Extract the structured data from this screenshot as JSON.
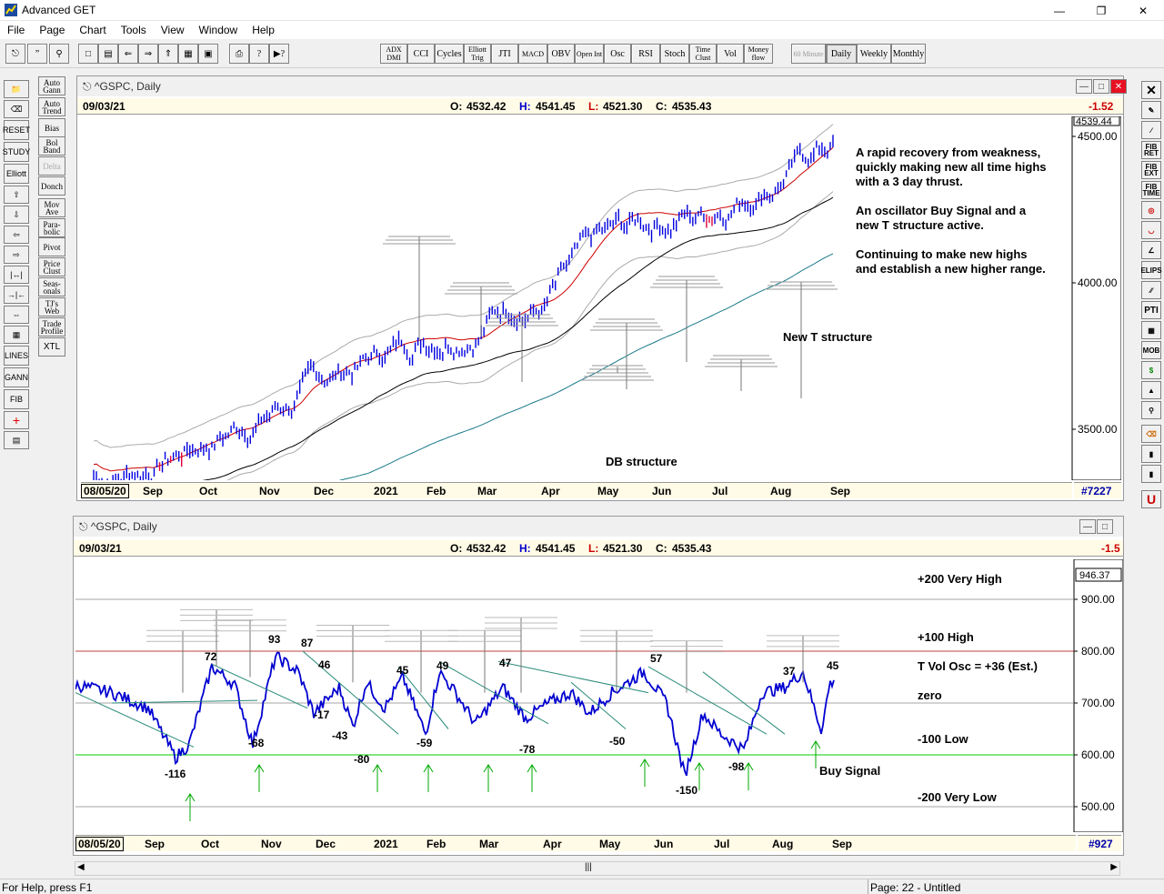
{
  "app": {
    "title": "Advanced GET"
  },
  "menu": [
    "File",
    "Page",
    "Chart",
    "Tools",
    "View",
    "Window",
    "Help"
  ],
  "toolbar": {
    "studies": [
      "ADX DMI",
      "CCI",
      "Cycles",
      "Elliott Trig",
      "JTI",
      "MACD",
      "OBV",
      "Open Int",
      "Osc",
      "RSI",
      "Stoch",
      "Time Clust",
      "Vol",
      "Money flow"
    ],
    "periods": [
      "60 Minute",
      "Daily",
      "Weekly",
      "Monthly"
    ],
    "active_period": "Daily"
  },
  "left_studies": [
    "Auto Gann",
    "Auto Trend",
    "Bias",
    "Bol Band",
    "Delta",
    "Donch",
    "Mov Ave",
    "Para-bolic",
    "Pivot",
    "Price Clust",
    "Seas-onals",
    "TJ's Web",
    "Trade Profile",
    "XTL"
  ],
  "left_tools": [
    "LINES",
    "GANN",
    "FIB",
    "RESET",
    "STUDY",
    "Elliott"
  ],
  "right_tools": [
    "FIB RET",
    "FIB EXT",
    "FIB TIME",
    "ELIPS",
    "PTI",
    "MOB"
  ],
  "top_pane": {
    "title": "^GSPC, Daily",
    "date": "09/03/21",
    "open_label": "O:",
    "open": "4532.42",
    "high_label": "H:",
    "high": "4541.45",
    "low_label": "L:",
    "low": "4521.30",
    "close_label": "C:",
    "close": "4535.43",
    "change": "-1.52",
    "last_price": "4539.44",
    "y_ticks": [
      "4500.00",
      "4000.00",
      "3500.00"
    ],
    "annotation_lines": [
      "A rapid recovery from weakness,",
      "quickly making new all time highs",
      "with a 3 day thrust.",
      "",
      "An oscillator Buy Signal and a",
      "new T structure active.",
      "",
      "Continuing to make new highs",
      "and establish a new higher range."
    ],
    "label_new_t": "New T structure",
    "label_db": "DB structure",
    "start_date": "08/05/20",
    "months": [
      "Sep",
      "Oct",
      "Nov",
      "Dec",
      "2021",
      "Feb",
      "Mar",
      "Apr",
      "May",
      "Jun",
      "Jul",
      "Aug",
      "Sep"
    ],
    "bar_count": "#7227"
  },
  "bottom_pane": {
    "title": "^GSPC, Daily",
    "date": "09/03/21",
    "open_label": "O:",
    "open": "4532.42",
    "high_label": "H:",
    "high": "4541.45",
    "low_label": "L:",
    "low": "4521.30",
    "close_label": "C:",
    "close": "4535.43",
    "change": "-1.5",
    "last_value": "946.37",
    "y_ticks": [
      "900.00",
      "800.00",
      "700.00",
      "600.00",
      "500.00"
    ],
    "levels": [
      "+200 Very High",
      "+100 High",
      "T Vol Osc = +36 (Est.)",
      "zero",
      "-100 Low",
      "-200 Very Low"
    ],
    "buy_signal": "Buy Signal",
    "peak_labels": [
      "72",
      "93",
      "87",
      "46",
      "45",
      "49",
      "47",
      "57",
      "37",
      "45"
    ],
    "trough_labels": [
      "-116",
      "-68",
      "-17",
      "-43",
      "-80",
      "-59",
      "-78",
      "-50",
      "-150",
      "-98"
    ],
    "start_date": "08/05/20",
    "months": [
      "Sep",
      "Oct",
      "Nov",
      "Dec",
      "2021",
      "Feb",
      "Mar",
      "Apr",
      "May",
      "Jun",
      "Jul",
      "Aug",
      "Sep"
    ],
    "bar_count": "#927"
  },
  "status": {
    "help": "For Help, press F1",
    "page": "Page: 22 - Untitled"
  }
}
